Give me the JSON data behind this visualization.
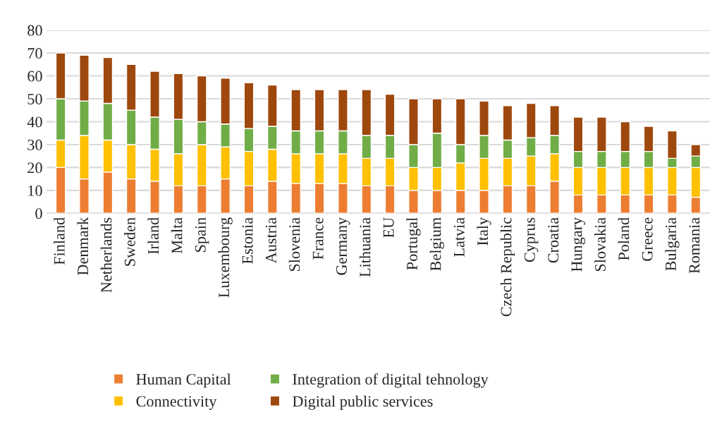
{
  "chart_data": {
    "type": "bar",
    "stacked": true,
    "categories": [
      "Finland",
      "Denmark",
      "Netherlands",
      "Sweden",
      "Irland",
      "Malta",
      "Spain",
      "Luxembourg",
      "Estonia",
      "Austria",
      "Slovenia",
      "France",
      "Germany",
      "Lithuania",
      "EU",
      "Portugal",
      "Belgium",
      "Latvia",
      "Italy",
      "Czech Republic",
      "Cyprus",
      "Croatia",
      "Hungary",
      "Slovakia",
      "Poland",
      "Greece",
      "Bulgaria",
      "Romania"
    ],
    "series": [
      {
        "name": "Human Capital",
        "color": "#ed7d31",
        "values": [
          20,
          15,
          18,
          15,
          14,
          12,
          12,
          15,
          12,
          14,
          13,
          13,
          13,
          12,
          12,
          10,
          10,
          10,
          10,
          12,
          12,
          14,
          8,
          8,
          8,
          8,
          8,
          7
        ]
      },
      {
        "name": "Connectivity",
        "color": "#ffc000",
        "values": [
          12,
          19,
          14,
          15,
          14,
          14,
          18,
          14,
          15,
          14,
          13,
          13,
          13,
          12,
          12,
          10,
          10,
          12,
          14,
          12,
          13,
          12,
          12,
          12,
          12,
          12,
          12,
          13
        ]
      },
      {
        "name": "Integration of digital tehnology",
        "color": "#70ad47",
        "values": [
          18,
          15,
          16,
          15,
          14,
          15,
          10,
          10,
          10,
          10,
          10,
          10,
          10,
          10,
          10,
          10,
          15,
          8,
          10,
          8,
          8,
          8,
          7,
          7,
          7,
          7,
          4,
          5
        ]
      },
      {
        "name": "Digital public services",
        "color": "#9e480e",
        "values": [
          20,
          20,
          20,
          20,
          20,
          20,
          20,
          20,
          20,
          18,
          18,
          18,
          18,
          20,
          18,
          20,
          15,
          20,
          15,
          15,
          15,
          13,
          15,
          15,
          13,
          11,
          12,
          5
        ]
      }
    ],
    "ylim": [
      0,
      80
    ],
    "yticks": [
      0,
      10,
      20,
      30,
      40,
      50,
      60,
      70,
      80
    ],
    "grid": "y",
    "legend": "bottom"
  }
}
